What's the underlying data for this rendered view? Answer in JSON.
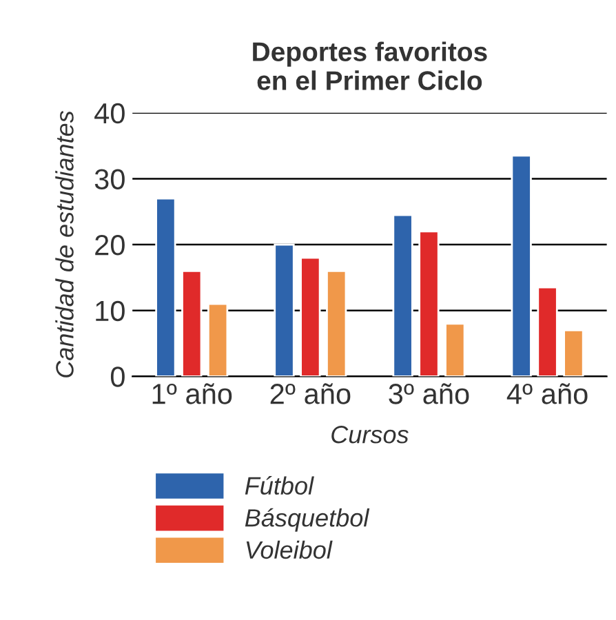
{
  "chart_data": {
    "type": "bar",
    "title": "Deportes favoritos\nen el Primer Ciclo",
    "xlabel": "Cursos",
    "ylabel": "Cantidad de estudiantes",
    "categories": [
      "1º año",
      "2º año",
      "3º año",
      "4º año"
    ],
    "series": [
      {
        "name": "Fútbol",
        "color": "#2e64ac",
        "values": [
          27,
          20,
          24.5,
          33.5
        ]
      },
      {
        "name": "Básquetbol",
        "color": "#e02a2a",
        "values": [
          16,
          18,
          22,
          13.5
        ]
      },
      {
        "name": "Voleibol",
        "color": "#f0984a",
        "values": [
          11,
          16,
          8,
          7
        ]
      }
    ],
    "ylim": [
      0,
      40
    ],
    "yticks": [
      0,
      10,
      20,
      30,
      40
    ],
    "grid": "y",
    "legend": "bottom"
  }
}
